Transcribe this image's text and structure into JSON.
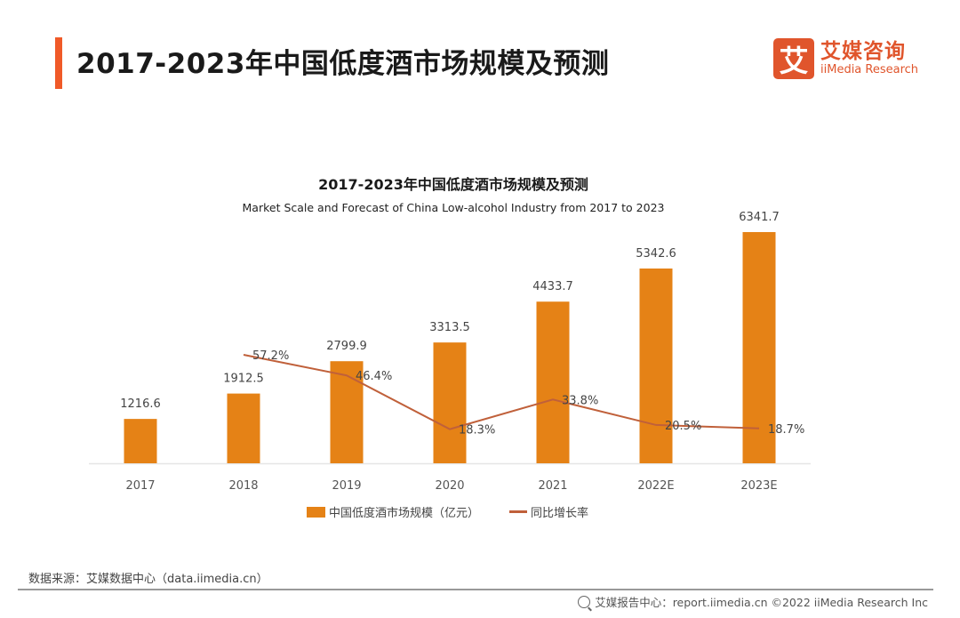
{
  "header": {
    "title": "2017-2023年中国低度酒市场规模及预测",
    "accent_color": "#f05a28"
  },
  "logo": {
    "mark": "艾",
    "name_cn": "艾媒咨询",
    "name_en": "iiMedia Research",
    "color": "#e0552c"
  },
  "chart_data": {
    "type": "bar",
    "title": "2017-2023年中国低度酒市场规模及预测",
    "subtitle": "Market Scale and Forecast of China Low-alcohol Industry from 2017 to 2023",
    "categories": [
      "2017",
      "2018",
      "2019",
      "2020",
      "2021",
      "2022E",
      "2023E"
    ],
    "series": [
      {
        "name": "中国低度酒市场规模（亿元）",
        "type": "bar",
        "color": "#e58216",
        "values": [
          1216.6,
          1912.5,
          2799.9,
          3313.5,
          4433.7,
          5342.6,
          6341.7
        ],
        "labels": [
          "1216.6",
          "1912.5",
          "2799.9",
          "3313.5",
          "4433.7",
          "5342.6",
          "6341.7"
        ]
      },
      {
        "name": "同比增长率",
        "type": "line",
        "color": "#c0603a",
        "values": [
          null,
          57.2,
          46.4,
          18.3,
          33.8,
          20.5,
          18.7
        ],
        "labels": [
          null,
          "57.2%",
          "46.4%",
          "18.3%",
          "33.8%",
          "20.5%",
          "18.7%"
        ]
      }
    ],
    "xlabel": "",
    "ylabel": "",
    "ylim": [
      0,
      6341.7
    ],
    "grid": false,
    "legend_position": "bottom-center"
  },
  "legend": {
    "bar_label": "中国低度酒市场规模（亿元）",
    "line_label": "同比增长率"
  },
  "source": "数据来源：艾媒数据中心（data.iimedia.cn）",
  "footer": "艾媒报告中心：report.iimedia.cn   ©2022  iiMedia Research  Inc"
}
